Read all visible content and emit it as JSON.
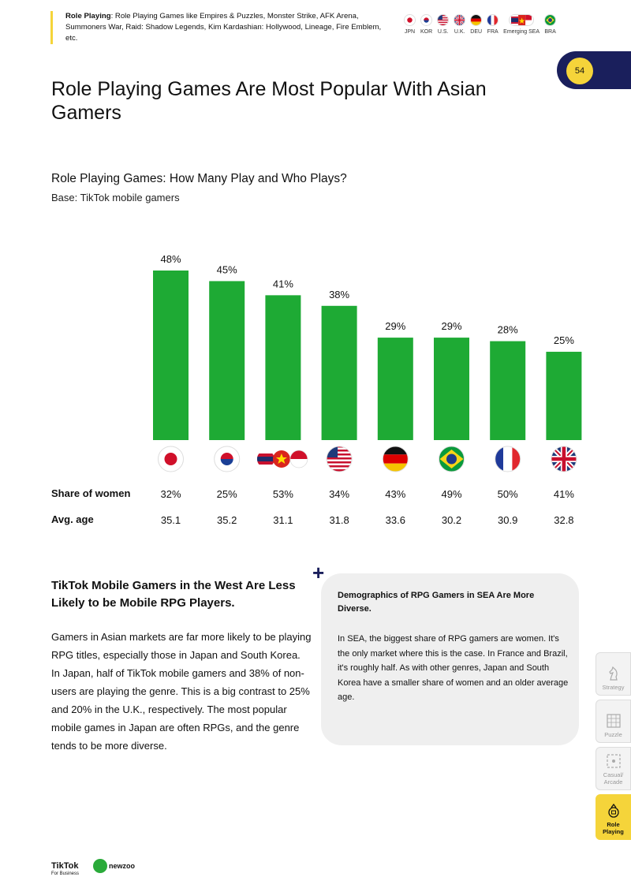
{
  "top_note": {
    "label": "Role Playing",
    "text": ": Role Playing Games like Empires & Puzzles, Monster Strike, AFK Arena, Summoners War, Raid: Shadow Legends, Kim Kardashian: Hollywood, Lineage, Fire Emblem, etc."
  },
  "top_flags": [
    "JPN",
    "KOR",
    "U.S.",
    "U.K.",
    "DEU",
    "FRA",
    "Emerging SEA",
    "BRA"
  ],
  "page_number": "54",
  "title": "Role Playing Games Are Most Popular With Asian Gamers",
  "chart_title": "Role Playing Games: How Many Play and Who Plays?",
  "base": "Base: TikTok mobile gamers",
  "chart_data": {
    "type": "bar",
    "title": "Role Playing Games: How Many Play and Who Plays?",
    "subtitle": "Base: TikTok mobile gamers",
    "categories": [
      "Japan",
      "South Korea",
      "Emerging SEA",
      "U.S.",
      "Germany",
      "Brazil",
      "France",
      "U.K."
    ],
    "flags": [
      "japan-flag-icon",
      "south-korea-flag-icon",
      "sea-flags-icon",
      "us-flag-icon",
      "germany-flag-icon",
      "brazil-flag-icon",
      "france-flag-icon",
      "uk-flag-icon"
    ],
    "values": [
      48,
      45,
      41,
      38,
      29,
      29,
      28,
      25
    ],
    "value_labels": [
      "48%",
      "45%",
      "41%",
      "38%",
      "29%",
      "29%",
      "28%",
      "25%"
    ],
    "ylim": [
      0,
      48
    ],
    "color": "#1eaa34",
    "grid": false,
    "table": {
      "share_label": "Share of women",
      "share": [
        "32%",
        "25%",
        "53%",
        "34%",
        "43%",
        "49%",
        "50%",
        "41%"
      ],
      "age_label": "Avg. age",
      "age": [
        "35.1",
        "35.2",
        "31.1",
        "31.8",
        "33.6",
        "30.2",
        "30.9",
        "32.8"
      ]
    }
  },
  "left": {
    "heading": "TikTok Mobile Gamers in the West Are Less Likely to be Mobile RPG Players.",
    "body": "Gamers in Asian markets are far more likely to be playing RPG titles, especially those in Japan and South Korea. In Japan, half of TikTok mobile gamers and 38% of non-users are playing the genre. This is a big contrast to 25% and 20% in the U.K., respectively. The most popular mobile games in Japan are often RPGs, and the genre tends to be more diverse."
  },
  "card": {
    "title": "Demographics of RPG Gamers in SEA Are More Diverse.",
    "body": "In SEA, the biggest share of RPG gamers are women. It's the only market where this is the case. In France and Brazil, it's roughly half. As with other genres, Japan and South Korea have a smaller share of women and an older average age."
  },
  "side_tabs": [
    {
      "label": "Strategy",
      "icon": "chess-knight-icon"
    },
    {
      "label": "Puzzle",
      "icon": "puzzle-grid-icon"
    },
    {
      "label": "Casual/ Arcade",
      "icon": "arcade-icon"
    },
    {
      "label": "Role Playing",
      "icon": "role-playing-icon",
      "active": true
    }
  ],
  "logos": {
    "tiktok": "TikTok",
    "tiktok_sub": "For Business",
    "newzoo": "newzoo"
  },
  "colors": {
    "accent": "#f5d43a",
    "navy": "#1a1f5c",
    "bar": "#1eaa34"
  }
}
